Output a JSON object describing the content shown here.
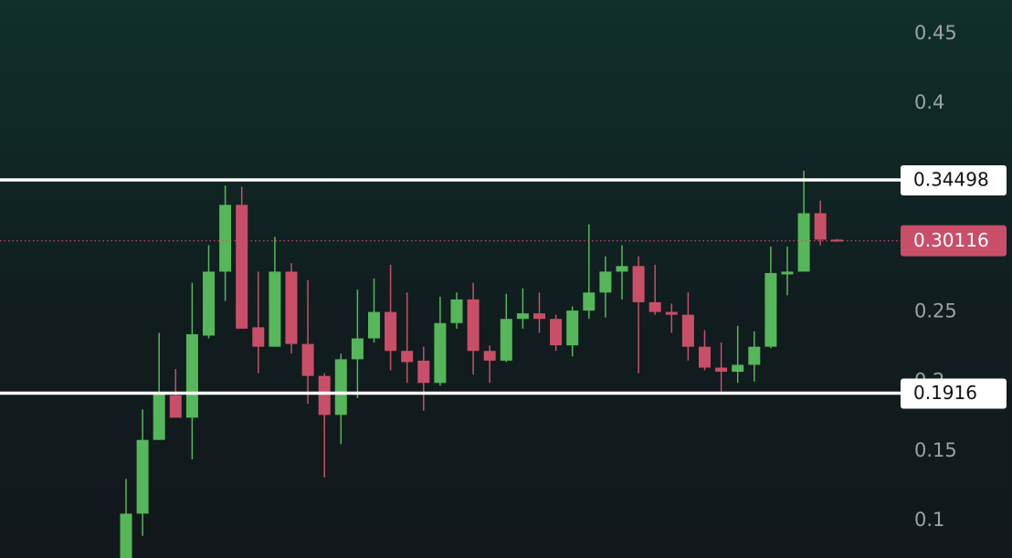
{
  "chart_data": {
    "type": "candlestick",
    "open": [
      0.07,
      0.105,
      0.158,
      0.19,
      0.174,
      0.233,
      0.279,
      0.327,
      0.239,
      0.225,
      0.279,
      0.227,
      0.204,
      0.176,
      0.216,
      0.231,
      0.25,
      0.222,
      0.215,
      0.199,
      0.242,
      0.259,
      0.222,
      0.215,
      0.245,
      0.249,
      0.245,
      0.226,
      0.251,
      0.264,
      0.279,
      0.283,
      0.257,
      0.25,
      0.248,
      0.225,
      0.21,
      0.207,
      0.212,
      0.225,
      0.277,
      0.279,
      0.321,
      0.302
    ],
    "high": [
      0.13,
      0.18,
      0.235,
      0.209,
      0.271,
      0.298,
      0.341,
      0.34,
      0.279,
      0.304,
      0.285,
      0.273,
      0.206,
      0.22,
      0.266,
      0.274,
      0.284,
      0.264,
      0.225,
      0.261,
      0.264,
      0.271,
      0.226,
      0.263,
      0.267,
      0.264,
      0.248,
      0.254,
      0.313,
      0.29,
      0.298,
      0.29,
      0.284,
      0.256,
      0.264,
      0.237,
      0.228,
      0.24,
      0.236,
      0.297,
      0.297,
      0.3515,
      0.33,
      0.3025
    ],
    "low": [
      0.07,
      0.089,
      0.158,
      0.174,
      0.144,
      0.231,
      0.258,
      0.238,
      0.206,
      0.225,
      0.22,
      0.184,
      0.131,
      0.155,
      0.188,
      0.228,
      0.208,
      0.199,
      0.179,
      0.197,
      0.238,
      0.205,
      0.199,
      0.214,
      0.238,
      0.235,
      0.222,
      0.218,
      0.245,
      0.246,
      0.259,
      0.206,
      0.248,
      0.235,
      0.215,
      0.208,
      0.193,
      0.199,
      0.2,
      0.224,
      0.262,
      0.279,
      0.298,
      0.3005
    ],
    "close": [
      0.105,
      0.158,
      0.191,
      0.174,
      0.234,
      0.279,
      0.327,
      0.238,
      0.225,
      0.279,
      0.227,
      0.204,
      0.176,
      0.216,
      0.231,
      0.25,
      0.222,
      0.214,
      0.199,
      0.242,
      0.259,
      0.222,
      0.215,
      0.245,
      0.249,
      0.245,
      0.226,
      0.251,
      0.264,
      0.279,
      0.283,
      0.257,
      0.25,
      0.248,
      0.225,
      0.21,
      0.207,
      0.212,
      0.225,
      0.278,
      0.279,
      0.321,
      0.302,
      0.3012
    ],
    "up_color": "#55b75a",
    "down_color": "#c94f69",
    "levels": [
      0.34498,
      0.1916
    ],
    "last_price": 0.30116,
    "ylim": [
      0.0731,
      0.4743
    ],
    "yticks": [
      0.1,
      0.15,
      0.2,
      0.25,
      0.4,
      0.45
    ],
    "grid": false
  }
}
